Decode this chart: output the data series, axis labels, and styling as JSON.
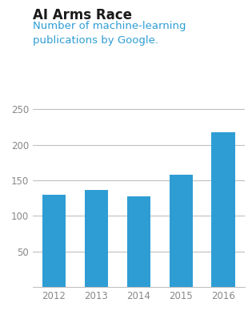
{
  "title": "AI Arms Race",
  "subtitle": "Number of machine-learning\npublications by Google.",
  "categories": [
    "2012",
    "2013",
    "2014",
    "2015",
    "2016"
  ],
  "values": [
    130,
    137,
    127,
    158,
    218
  ],
  "bar_color": "#2E9DD4",
  "title_color": "#1a1a1a",
  "subtitle_color": "#2E9DD4",
  "title_fontsize": 12,
  "subtitle_fontsize": 9.5,
  "ylim": [
    0,
    260
  ],
  "yticks": [
    50,
    100,
    150,
    200,
    250
  ],
  "background_color": "#ffffff",
  "bar_width": 0.55,
  "grid_color": "#c0c0c0",
  "tick_label_color": "#888888",
  "tick_label_size": 8.5
}
